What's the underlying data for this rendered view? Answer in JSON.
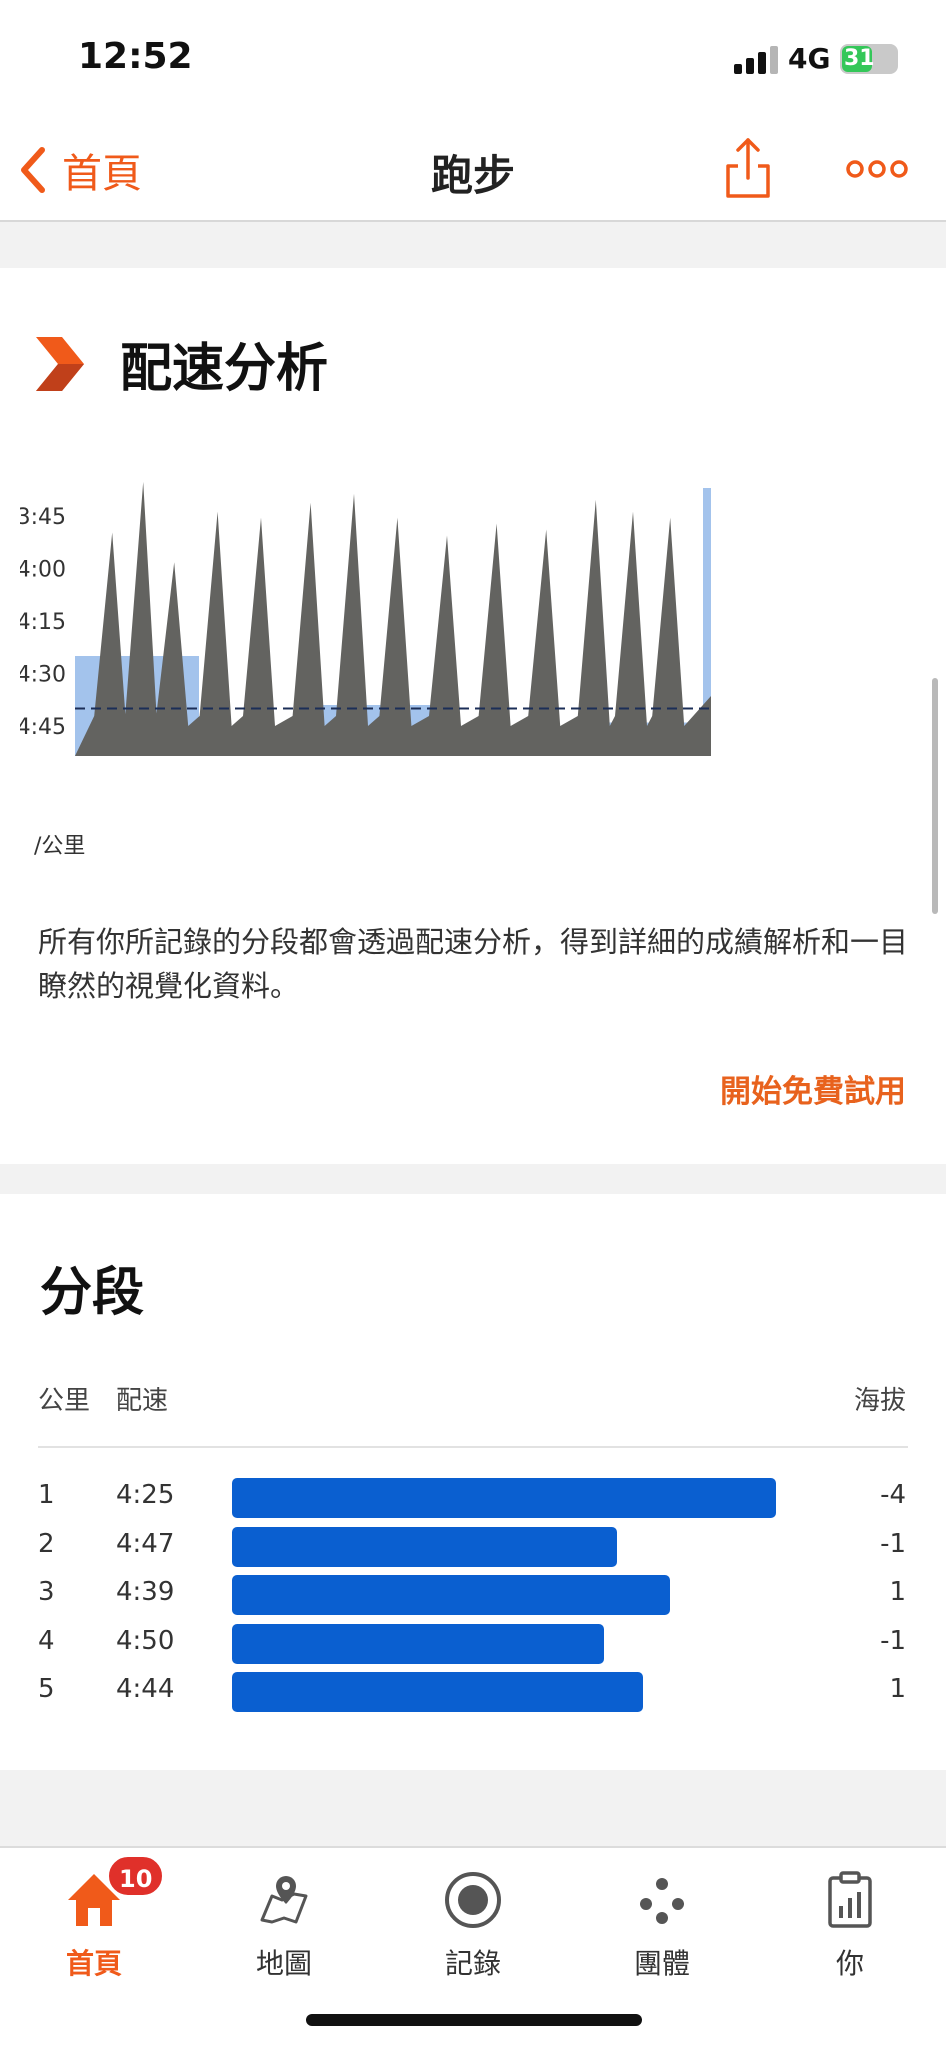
{
  "status_bar": {
    "time": "12:52",
    "network": "4G",
    "battery": "31"
  },
  "nav": {
    "back_label": "首頁",
    "title": "跑步",
    "share_icon": "share-icon",
    "more_icon": "more-dots-icon",
    "accent_color": "#f05a1a"
  },
  "pace_analysis": {
    "title": "配速分析",
    "description": "所有你所記錄的分段都會透過配速分析，得到詳細的成績解析和一目瞭然的視覺化資料。",
    "cta_label": "開始免費試用",
    "chart_data": {
      "type": "area",
      "y_tick_labels": [
        "3:45",
        "4:00",
        "4:15",
        "4:30",
        "4:45"
      ],
      "y_unit_label": "/公里",
      "average_pace_line": "4:40",
      "km_split_paces": [
        "4:25",
        "4:47",
        "4:39",
        "4:50",
        "4:44"
      ],
      "colors": {
        "pace_area": "#636360",
        "split_blocks": "#a3c3ec",
        "avg_line": "#1b2e57"
      }
    }
  },
  "splits": {
    "title": "分段",
    "headers": {
      "km": "公里",
      "pace": "配速",
      "elevation": "海拔"
    },
    "rows": [
      {
        "km": "1",
        "pace": "4:25",
        "elevation": "-4",
        "bar_fraction": 0.82
      },
      {
        "km": "2",
        "pace": "4:47",
        "elevation": "-1",
        "bar_fraction": 0.58
      },
      {
        "km": "3",
        "pace": "4:39",
        "elevation": "1",
        "bar_fraction": 0.66
      },
      {
        "km": "4",
        "pace": "4:50",
        "elevation": "-1",
        "bar_fraction": 0.56
      },
      {
        "km": "5",
        "pace": "4:44",
        "elevation": "1",
        "bar_fraction": 0.62
      }
    ],
    "bar_color": "#0a5fd0"
  },
  "tab_bar": {
    "tabs": [
      {
        "label": "首頁",
        "icon": "home-icon",
        "badge": "10",
        "active": true
      },
      {
        "label": "地圖",
        "icon": "map-icon"
      },
      {
        "label": "記錄",
        "icon": "record-icon"
      },
      {
        "label": "團體",
        "icon": "groups-icon"
      },
      {
        "label": "你",
        "icon": "profile-stats-icon"
      }
    ]
  }
}
